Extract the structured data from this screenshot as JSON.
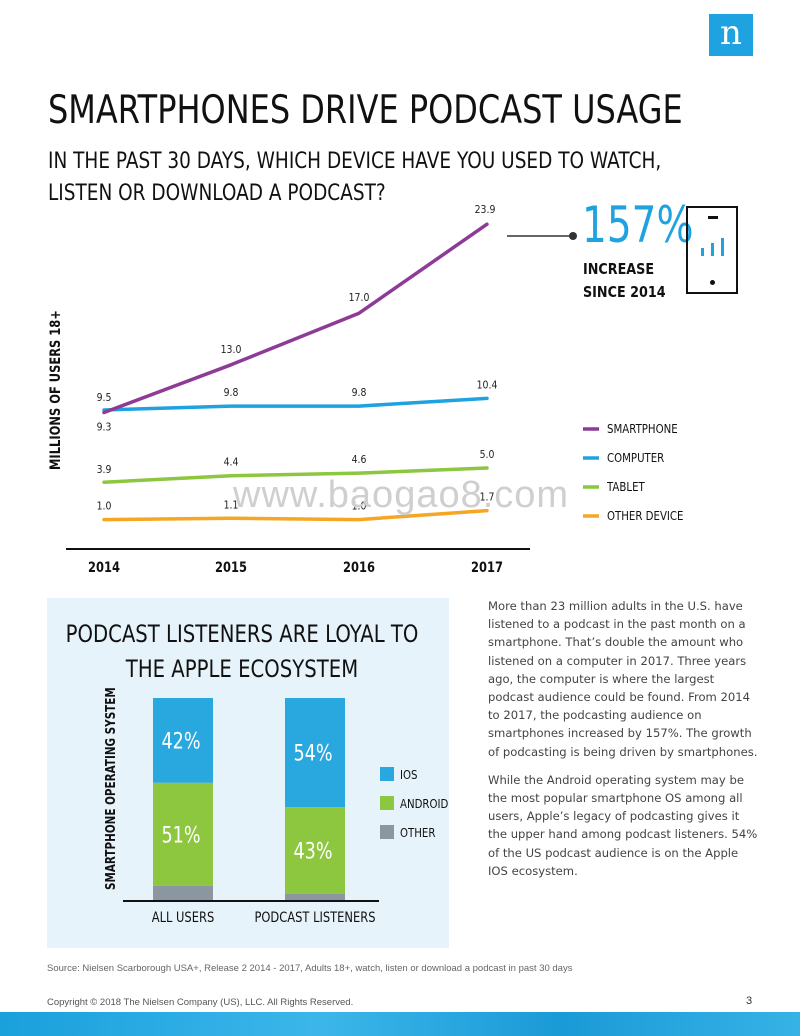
{
  "logo": "n",
  "title": "SMARTPHONES DRIVE PODCAST USAGE",
  "subtitle_lines": [
    "IN THE PAST 30 DAYS, WHICH DEVICE HAVE YOU USED TO WATCH,",
    "LISTEN OR DOWNLOAD A PODCAST?"
  ],
  "stat": {
    "pct": "157%",
    "line1": "INCREASE",
    "line2": "SINCE 2014"
  },
  "watermark": "www.baogao8.com",
  "chart_data": [
    {
      "type": "line",
      "title": "IN THE PAST 30 DAYS, WHICH DEVICE HAVE YOU USED TO WATCH, LISTEN OR DOWNLOAD A PODCAST?",
      "ylabel": "MILLIONS OF USERS 18+",
      "x": [
        "2014",
        "2015",
        "2016",
        "2017"
      ],
      "ylim": [
        0,
        25
      ],
      "legend_position": "right",
      "series": [
        {
          "name": "SMARTPHONE",
          "color": "#8e3b97",
          "values": [
            9.3,
            13.0,
            17.0,
            23.9
          ],
          "labels": [
            "9.3",
            "13.0",
            "17.0",
            "23.9"
          ]
        },
        {
          "name": "COMPUTER",
          "color": "#1fa3e0",
          "values": [
            9.5,
            9.8,
            9.8,
            10.4
          ],
          "labels": [
            "9.5",
            "9.8",
            "9.8",
            "10.4"
          ]
        },
        {
          "name": "TABLET",
          "color": "#8dc63f",
          "values": [
            3.9,
            4.4,
            4.6,
            5.0
          ],
          "labels": [
            "3.9",
            "4.4",
            "4.6",
            "5.0"
          ]
        },
        {
          "name": "OTHER DEVICE",
          "color": "#f5a623",
          "values": [
            1.0,
            1.1,
            1.0,
            1.7
          ],
          "labels": [
            "1.0",
            "1.1",
            "1.0",
            "1.7"
          ]
        }
      ]
    },
    {
      "type": "bar",
      "stacked": true,
      "title": "PODCAST LISTENERS ARE LOYAL TO THE APPLE ECOSYSTEM",
      "ylabel": "SMARTPHONE OPERATING SYSTEM",
      "categories": [
        "ALL USERS",
        "PODCAST LISTENERS"
      ],
      "legend_position": "right",
      "series": [
        {
          "name": "IOS",
          "color": "#29a8e0",
          "values": [
            42,
            54
          ],
          "labels": [
            "42%",
            "54%"
          ]
        },
        {
          "name": "ANDROID",
          "color": "#8dc63f",
          "values": [
            51,
            43
          ],
          "labels": [
            "51%",
            "43%"
          ]
        },
        {
          "name": "OTHER",
          "color": "#8c96a0",
          "values": [
            7,
            3
          ],
          "labels": [
            "",
            ""
          ]
        }
      ]
    }
  ],
  "panel": {
    "title_lines": [
      "PODCAST LISTENERS ARE LOYAL TO",
      "THE APPLE ECOSYSTEM"
    ]
  },
  "body": {
    "p1": "More than 23 million adults in the U.S. have listened to a podcast in the past month on a smartphone. That’s double the amount who listened on a computer in 2017. Three years ago, the computer is where the largest podcast audience could be found. From 2014 to 2017, the podcasting audience on smartphones increased by 157%. The growth of podcasting is being driven by smartphones.",
    "p2": "While the Android operating system may be the most popular smartphone OS among all users, Apple’s legacy of podcasting gives it the upper hand among podcast listeners. 54% of the US podcast audience is on the Apple IOS ecosystem."
  },
  "source": "Source: Nielsen Scarborough USA+, Release 2 2014 - 2017, Adults 18+, watch, listen or download  a podcast in past 30 days",
  "copyright": "Copyright © 2018 The Nielsen Company (US), LLC. All Rights Reserved.",
  "page_number": "3"
}
